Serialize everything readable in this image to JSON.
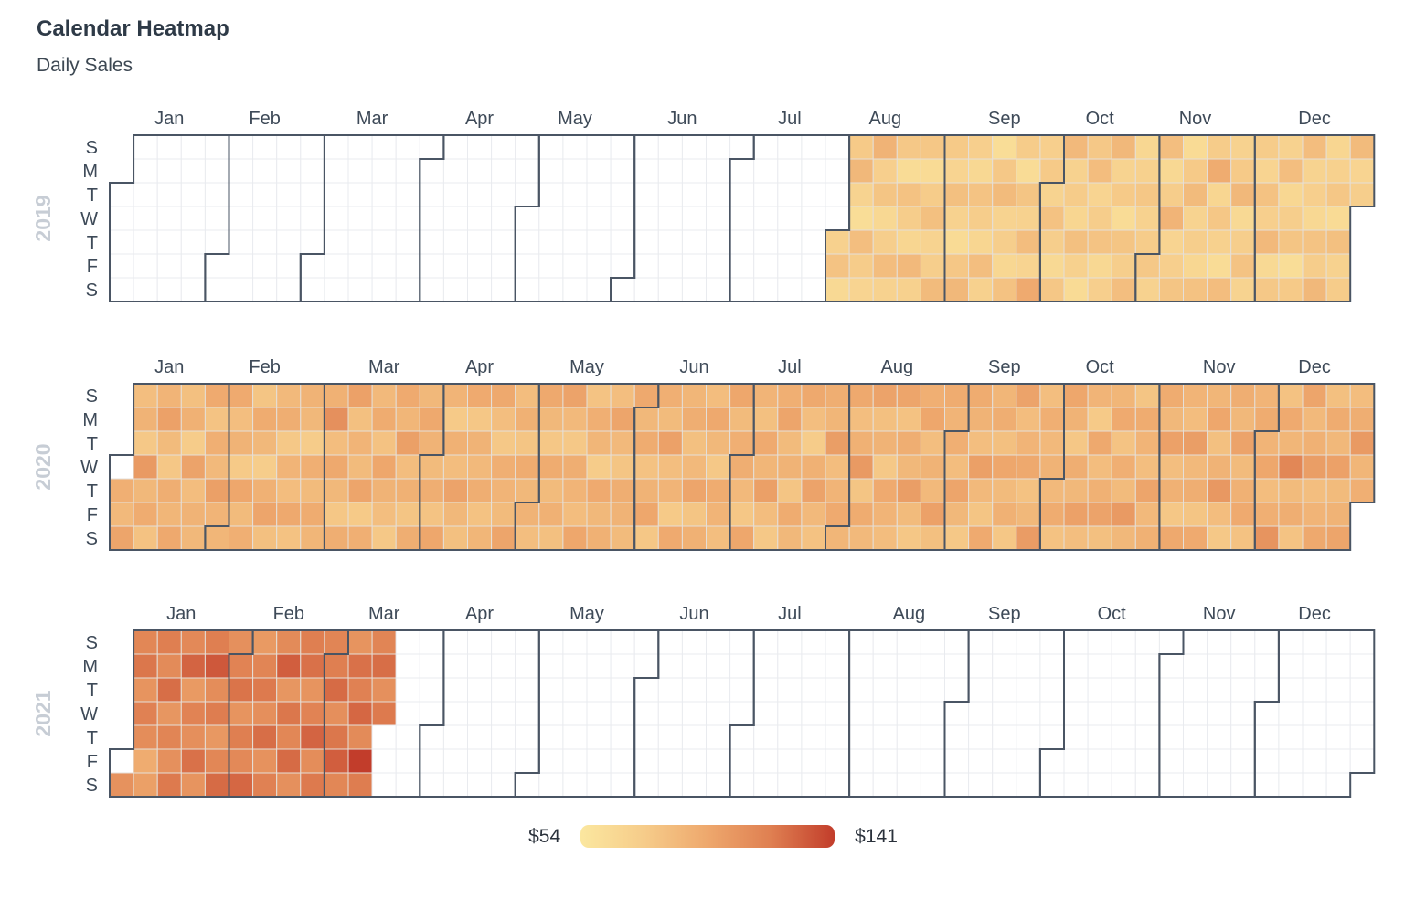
{
  "title": "Calendar Heatmap",
  "subtitle": "Daily Sales",
  "legend": {
    "min_label": "$54",
    "max_label": "$141"
  },
  "colors": {
    "scale_stops": [
      "#FBE79F",
      "#F6CC8A",
      "#EEA86D",
      "#DF7F51",
      "#C23D2B"
    ],
    "empty_cell": "#FFFFFF",
    "grid_line_empty": "#E9EBEF",
    "grid_line_filled": "#E5DFD8",
    "month_outline": "#4A5564",
    "title_text": "#2E3A47",
    "label_text": "#3E4A58",
    "year_text": "#C7CDD5"
  },
  "chart_data": {
    "type": "heatmap",
    "subtype": "calendar",
    "title": "Calendar Heatmap",
    "subtitle": "Daily Sales",
    "value_unit": "$",
    "value_min": 54,
    "value_max": 141,
    "legend_position": "bottom",
    "day_labels": [
      "S",
      "M",
      "T",
      "W",
      "T",
      "F",
      "S"
    ],
    "years": [
      {
        "label": "2019",
        "jan1_dow": 2,
        "months": [
          {
            "name": "Jan",
            "days": 31,
            "values": null
          },
          {
            "name": "Feb",
            "days": 28,
            "values": null
          },
          {
            "name": "Mar",
            "days": 31,
            "values": null
          },
          {
            "name": "Apr",
            "days": 30,
            "values": null
          },
          {
            "name": "May",
            "days": 31,
            "values": null
          },
          {
            "name": "Jun",
            "days": 30,
            "values": null
          },
          {
            "name": "Jul",
            "days": 31,
            "values": null
          },
          {
            "name": "Aug",
            "days": 31,
            "values": [
              72,
              81,
              65,
              77,
              88,
              70,
              62,
              84,
              76,
              69,
              91,
              73,
              80,
              66,
              74,
              85,
              71,
              78,
              63,
              82,
              75,
              68,
              87,
              72,
              79,
              64,
              76,
              83,
              70,
              74,
              86
            ]
          },
          {
            "name": "Sep",
            "days": 30,
            "values": [
              77,
              69,
              83,
              71,
              64,
              79,
              88,
              73,
              66,
              81,
              75,
              68,
              84,
              72,
              62,
              78,
              86,
              70,
              74,
              67,
              82,
              76,
              63,
              80,
              71,
              85,
              69,
              96,
              73,
              77
            ]
          },
          {
            "name": "Oct",
            "days": 31,
            "values": [
              70,
              82,
              74,
              65,
              79,
              87,
              71,
              76,
              68,
              83,
              72,
              64,
              78,
              85,
              69,
              75,
              81,
              66,
              73,
              88,
              70,
              77,
              63,
              80,
              74,
              84,
              67,
              72,
              79,
              71,
              76
            ]
          },
          {
            "name": "Nov",
            "days": 30,
            "values": [
              78,
              71,
              84,
              66,
              75,
              90,
              69,
              73,
              80,
              64,
              77,
              86,
              70,
              74,
              67,
              82,
              76,
              95,
              68,
              79,
              72,
              63,
              85,
              71,
              77,
              88,
              65,
              74,
              81,
              70
            ]
          },
          {
            "name": "Dec",
            "days": 31,
            "values": [
              76,
              69,
              82,
              73,
              87,
              65,
              78,
              71,
              84,
              67,
              74,
              80,
              62,
              77,
              85,
              70,
              73,
              66,
              81,
              75,
              88,
              68,
              72,
              79,
              64,
              83,
              71,
              76,
              86,
              69,
              74
            ]
          }
        ]
      },
      {
        "label": "2020",
        "jan1_dow": 3,
        "months": [
          {
            "name": "Jan",
            "days": 31,
            "values": [
              null,
              93,
              87,
              99,
              84,
              91,
              78,
              105,
              88,
              95,
              82,
              90,
              101,
              86,
              79,
              94,
              89,
              97,
              83,
              92,
              76,
              100,
              85,
              91,
              88,
              96,
              81,
              93,
              87,
              102,
              90
            ]
          },
          {
            "name": "Feb",
            "days": 29,
            "values": [
              89,
              96,
              84,
              91,
              77,
              98,
              86,
              93,
              80,
              95,
              88,
              75,
              92,
              99,
              83,
              87,
              94,
              78,
              90,
              85,
              97,
              82,
              91,
              88,
              76,
              93,
              86,
              95,
              89
            ]
          },
          {
            "name": "Mar",
            "days": 31,
            "values": [
              92,
              110,
              85,
              97,
              88,
              79,
              94,
              101,
              83,
              90,
              86,
              99,
              77,
              93,
              87,
              95,
              82,
              98,
              91,
              84,
              78,
              96,
              89,
              102,
              85,
              92,
              80,
              94,
              88,
              97,
              91
            ]
          },
          {
            "name": "Apr",
            "days": 30,
            "values": [
              86,
              94,
              81,
              98,
              90,
              77,
              92,
              85,
              100,
              88,
              83,
              96,
              79,
              91,
              87,
              94,
              82,
              89,
              97,
              84,
              78,
              93,
              90,
              86,
              99,
              85,
              92,
              80,
              95,
              88
            ]
          },
          {
            "name": "May",
            "days": 31,
            "values": [
              91,
              84,
              97,
              88,
              79,
              95,
              86,
              92,
              83,
              100,
              87,
              78,
              94,
              90,
              85,
              98,
              81,
              93,
              89,
              76,
              96,
              88,
              92,
              84,
              99,
              87,
              80,
              94,
              91,
              86,
              97
            ]
          },
          {
            "name": "Jun",
            "days": 30,
            "values": [
              88,
              95,
              82,
              91,
              98,
              79,
              93,
              86,
              101,
              84,
              90,
              77,
              96,
              89,
              94,
              83,
              87,
              99,
              80,
              92,
              85,
              97,
              88,
              78,
              95,
              90,
              84,
              98,
              86,
              93
            ]
          },
          {
            "name": "Jul",
            "days": 31,
            "values": [
              94,
              87,
              79,
              98,
              90,
              83,
              96,
              89,
              102,
              85,
              78,
              93,
              99,
              86,
              91,
              80,
              95,
              88,
              97,
              84,
              76,
              92,
              100,
              87,
              82,
              94,
              89,
              103,
              85,
              90,
              96
            ]
          },
          {
            "name": "Aug",
            "days": 31,
            "values": [
              89,
              97,
              84,
              92,
              105,
              80,
              95,
              87,
              100,
              83,
              91,
              78,
              96,
              90,
              85,
              99,
              82,
              94,
              88,
              103,
              86,
              79,
              93,
              98,
              84,
              91,
              87,
              101,
              83,
              95,
              90
            ]
          },
          {
            "name": "Sep",
            "days": 30,
            "values": [
              93,
              85,
              99,
              88,
              78,
              95,
              91,
              84,
              102,
              87,
              80,
              96,
              89,
              94,
              83,
              98,
              86,
              92,
              79,
              100,
              85,
              90,
              97,
              82,
              88,
              104,
              84,
              93,
              87,
              91
            ]
          },
          {
            "name": "Oct",
            "days": 31,
            "values": [
              87,
              95,
              82,
              98,
              91,
              79,
              94,
              88,
              101,
              84,
              90,
              77,
              97,
              85,
              92,
              100,
              83,
              89,
              96,
              81,
              93,
              86,
              105,
              88,
              80,
              95,
              90,
              84,
              99,
              87,
              92
            ]
          },
          {
            "name": "Nov",
            "days": 30,
            "values": [
              95,
              88,
              101,
              84,
              92,
              79,
              97,
              90,
              85,
              103,
              87,
              94,
              80,
              96,
              89,
              98,
              83,
              91,
              106,
              85,
              78,
              94,
              88,
              100,
              86,
              92,
              96,
              82,
              90,
              95
            ]
          },
          {
            "name": "Dec",
            "days": 31,
            "values": [
              90,
              98,
              85,
              93,
              108,
              82,
              96,
              89,
              115,
              86,
              94,
              81,
              99,
              87,
              92,
              103,
              84,
              90,
              97,
              83,
              95,
              88,
              101,
              86,
              91,
              99,
              85,
              94,
              105,
              89,
              93
            ]
          }
        ]
      },
      {
        "label": "2021",
        "jan1_dow": 5,
        "months": [
          {
            "name": "Jan",
            "days": 31,
            "values": [
              null,
              109,
              115,
              122,
              108,
              118,
              112,
              95,
              102,
              119,
              113,
              125,
              107,
              116,
              110,
              121,
              114,
              128,
              105,
              117,
              111,
              124,
              108,
              119,
              132,
              112,
              120,
              106,
              115,
              126,
              110
            ]
          },
          {
            "name": "Feb",
            "days": 28,
            "values": [
              117,
              123,
              108,
              119,
              114,
              127,
              105,
              116,
              121,
              111,
              125,
              109,
              118,
              113,
              130,
              107,
              122,
              115,
              126,
              110,
              119,
              124,
              108,
              117,
              128,
              112,
              121,
              116
            ]
          },
          {
            "name": "Mar",
            "days": 31,
            "values": [
              119,
              126,
              111,
              122,
              130,
              115,
              108,
              124,
              118,
              127,
              113,
              141,
              120,
              116,
              125,
              110,
              121
            ]
          },
          {
            "name": "Apr",
            "days": 30,
            "values": null
          },
          {
            "name": "May",
            "days": 31,
            "values": null
          },
          {
            "name": "Jun",
            "days": 30,
            "values": null
          },
          {
            "name": "Jul",
            "days": 31,
            "values": null
          },
          {
            "name": "Aug",
            "days": 31,
            "values": null
          },
          {
            "name": "Sep",
            "days": 30,
            "values": null
          },
          {
            "name": "Oct",
            "days": 31,
            "values": null
          },
          {
            "name": "Nov",
            "days": 30,
            "values": null
          },
          {
            "name": "Dec",
            "days": 31,
            "values": null
          }
        ]
      }
    ]
  }
}
